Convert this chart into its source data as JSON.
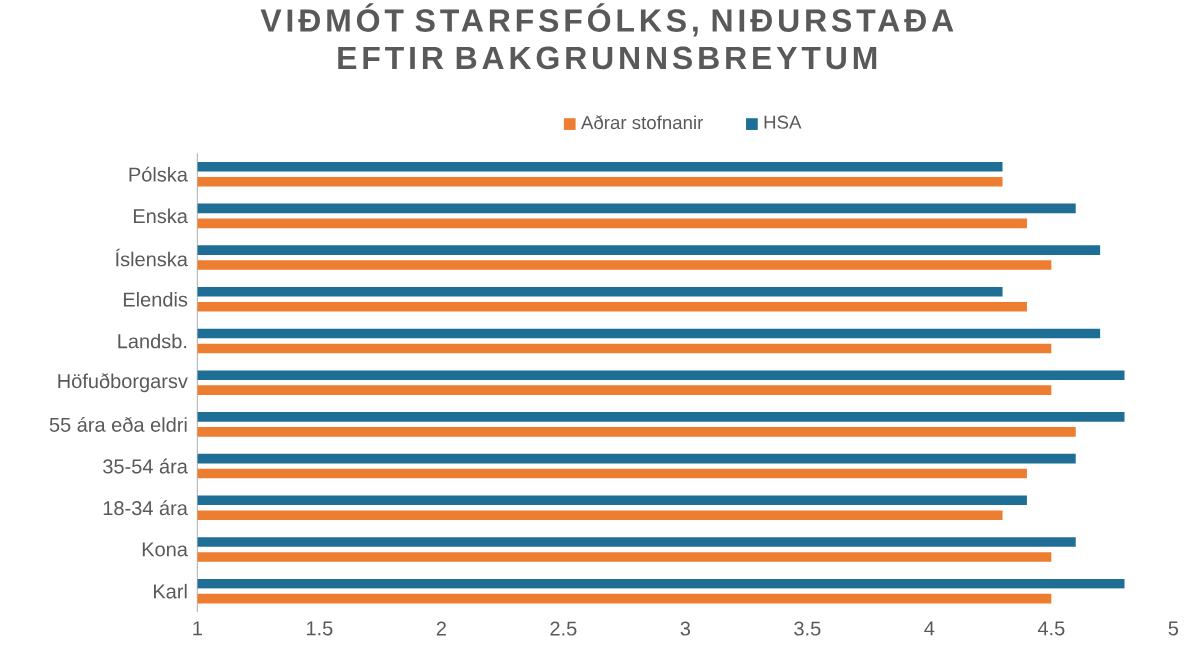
{
  "chart_data": {
    "type": "bar",
    "orientation": "horizontal",
    "title": "VIÐMÓT STARFSFÓLKS, NIÐURSTAÐA EFTIR BAKGRUNNSBREYTUM",
    "categories": [
      "Pólska",
      "Enska",
      "Íslenska",
      "Elendis",
      "Landsb.",
      "Höfuðborgarsv",
      "55 ára eða eldri",
      "35-54 ára",
      "18-34 ára",
      "Kona",
      "Karl"
    ],
    "series": [
      {
        "name": "Aðrar stofnanir",
        "color": "#ed7d31",
        "values": [
          4.3,
          4.4,
          4.5,
          4.4,
          4.5,
          4.5,
          4.6,
          4.4,
          4.3,
          4.5,
          4.5
        ]
      },
      {
        "name": "HSA",
        "color": "#1f6e96",
        "values": [
          4.3,
          4.6,
          4.7,
          4.3,
          4.7,
          4.8,
          4.8,
          4.6,
          4.4,
          4.6,
          4.8
        ]
      }
    ],
    "xlim": [
      1,
      5
    ],
    "xticks": [
      1,
      1.5,
      2,
      2.5,
      3,
      3.5,
      4,
      4.5,
      5
    ],
    "legend": "top",
    "grid": false
  }
}
